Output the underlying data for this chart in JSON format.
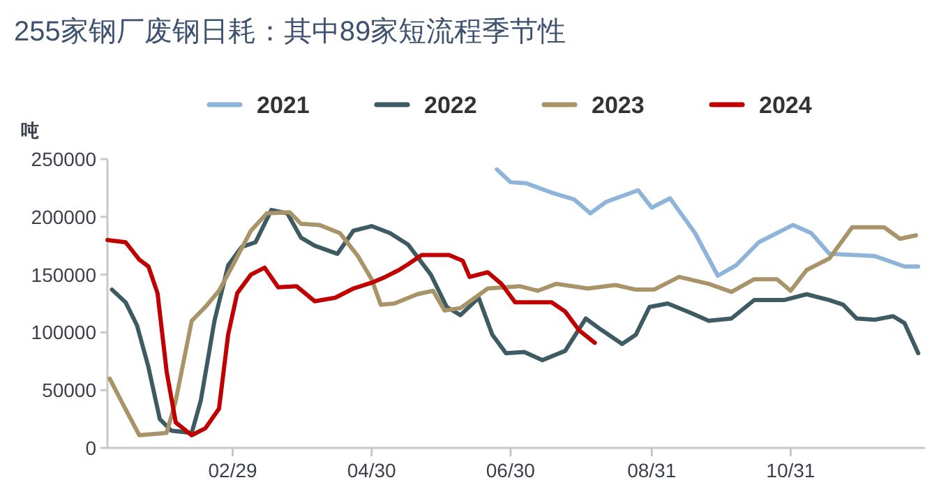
{
  "chart_data": {
    "type": "line",
    "title": "255家钢厂废钢日耗：其中89家短流程季节性",
    "ylabel": "吨",
    "xlim": [
      "--01-05",
      "--12-29"
    ],
    "xticks": [
      {
        "value": "--02-29",
        "label": "02/29"
      },
      {
        "value": "--04-30",
        "label": "04/30"
      },
      {
        "value": "--06-30",
        "label": "06/30"
      },
      {
        "value": "--08-31",
        "label": "08/31"
      },
      {
        "value": "--10-31",
        "label": "10/31"
      }
    ],
    "ylim": [
      0,
      250000
    ],
    "yticks": [
      0,
      50000,
      100000,
      150000,
      200000,
      250000
    ],
    "grid": false,
    "legend": "top",
    "marker": "none",
    "line_style": "solid",
    "series": [
      {
        "name": "2021",
        "color": "#8fb4d9",
        "x": [
          "--06-24",
          "--06-30",
          "--07-07",
          "--07-18",
          "--07-28",
          "--08-04",
          "--08-11",
          "--08-25",
          "--08-31",
          "--09-08",
          "--09-19",
          "--09-29",
          "--10-07",
          "--10-17",
          "--11-01",
          "--11-09",
          "--11-17",
          "--12-07",
          "--12-20",
          "--12-26"
        ],
        "values": [
          241000,
          230000,
          229000,
          221000,
          215000,
          203000,
          213000,
          223000,
          208000,
          216000,
          186000,
          149000,
          158000,
          178000,
          193000,
          186000,
          168000,
          166000,
          157000,
          157000
        ]
      },
      {
        "name": "2022",
        "color": "#3e5a62",
        "x": [
          "--01-07",
          "--01-13",
          "--01-18",
          "--01-23",
          "--01-28",
          "--02-02",
          "--02-11",
          "--02-15",
          "--02-21",
          "--02-27",
          "--03-04",
          "--03-10",
          "--03-17",
          "--03-24",
          "--03-30",
          "--04-05",
          "--04-15",
          "--04-22",
          "--04-30",
          "--05-08",
          "--05-16",
          "--05-26",
          "--06-02",
          "--06-08",
          "--06-16",
          "--06-22",
          "--06-28",
          "--07-06",
          "--07-14",
          "--07-24",
          "--08-02",
          "--08-09",
          "--08-18",
          "--08-24",
          "--08-30",
          "--09-07",
          "--09-17",
          "--09-25",
          "--10-05",
          "--10-15",
          "--10-28",
          "--11-07",
          "--11-17",
          "--11-23",
          "--11-29",
          "--12-07",
          "--12-15",
          "--12-20",
          "--12-26"
        ],
        "values": [
          137000,
          126000,
          106000,
          70000,
          25000,
          15000,
          13000,
          41000,
          110000,
          158000,
          174000,
          178000,
          206000,
          203000,
          182000,
          175000,
          168000,
          188000,
          192000,
          186000,
          176000,
          150000,
          122000,
          115000,
          130000,
          98000,
          82000,
          83000,
          76000,
          84000,
          112000,
          102000,
          90000,
          98000,
          122000,
          125000,
          117000,
          110000,
          112000,
          128000,
          128000,
          133000,
          128000,
          124000,
          112000,
          111000,
          114000,
          108000,
          82000
        ]
      },
      {
        "name": "2023",
        "color": "#a89468",
        "x": [
          "--01-06",
          "--01-12",
          "--01-19",
          "--01-31",
          "--02-04",
          "--02-11",
          "--02-17",
          "--02-23",
          "--02-29",
          "--03-08",
          "--03-15",
          "--03-25",
          "--03-30",
          "--04-07",
          "--04-16",
          "--04-24",
          "--04-30",
          "--05-04",
          "--05-10",
          "--05-20",
          "--05-27",
          "--06-01",
          "--06-08",
          "--06-20",
          "--07-04",
          "--07-12",
          "--07-20",
          "--08-03",
          "--08-15",
          "--08-24",
          "--09-01",
          "--09-12",
          "--09-25",
          "--10-05",
          "--10-15",
          "--10-25",
          "--10-31",
          "--11-07",
          "--11-17",
          "--11-27",
          "--12-11",
          "--12-18",
          "--12-25"
        ],
        "values": [
          60000,
          37000,
          11000,
          13000,
          41000,
          110000,
          122000,
          136000,
          158000,
          188000,
          203000,
          204000,
          194000,
          193000,
          186000,
          166000,
          146000,
          124000,
          125000,
          133000,
          136000,
          119000,
          121000,
          138000,
          140000,
          136000,
          142000,
          138000,
          141000,
          137000,
          137000,
          148000,
          142000,
          135000,
          146000,
          146000,
          136000,
          154000,
          164000,
          191000,
          191000,
          181000,
          184000
        ]
      },
      {
        "name": "2024",
        "color": "#c00000",
        "x": [
          "--01-05",
          "--01-13",
          "--01-19",
          "--01-23",
          "--01-27",
          "--01-31",
          "--02-04",
          "--02-11",
          "--02-17",
          "--02-23",
          "--02-27",
          "--03-02",
          "--03-08",
          "--03-14",
          "--03-20",
          "--03-28",
          "--04-05",
          "--04-14",
          "--04-22",
          "--04-30",
          "--05-06",
          "--05-12",
          "--05-16",
          "--05-22",
          "--06-03",
          "--06-09",
          "--06-12",
          "--06-20",
          "--06-26",
          "--07-02",
          "--07-18",
          "--07-24",
          "--07-30",
          "--08-06"
        ],
        "values": [
          180000,
          178000,
          163000,
          157000,
          134000,
          66000,
          22000,
          11000,
          17000,
          34000,
          98000,
          134000,
          150000,
          156000,
          139000,
          140000,
          127000,
          130000,
          138000,
          143000,
          148000,
          154000,
          159000,
          167000,
          167000,
          162000,
          148000,
          152000,
          142000,
          126000,
          126000,
          118000,
          102000,
          91000
        ]
      }
    ]
  }
}
